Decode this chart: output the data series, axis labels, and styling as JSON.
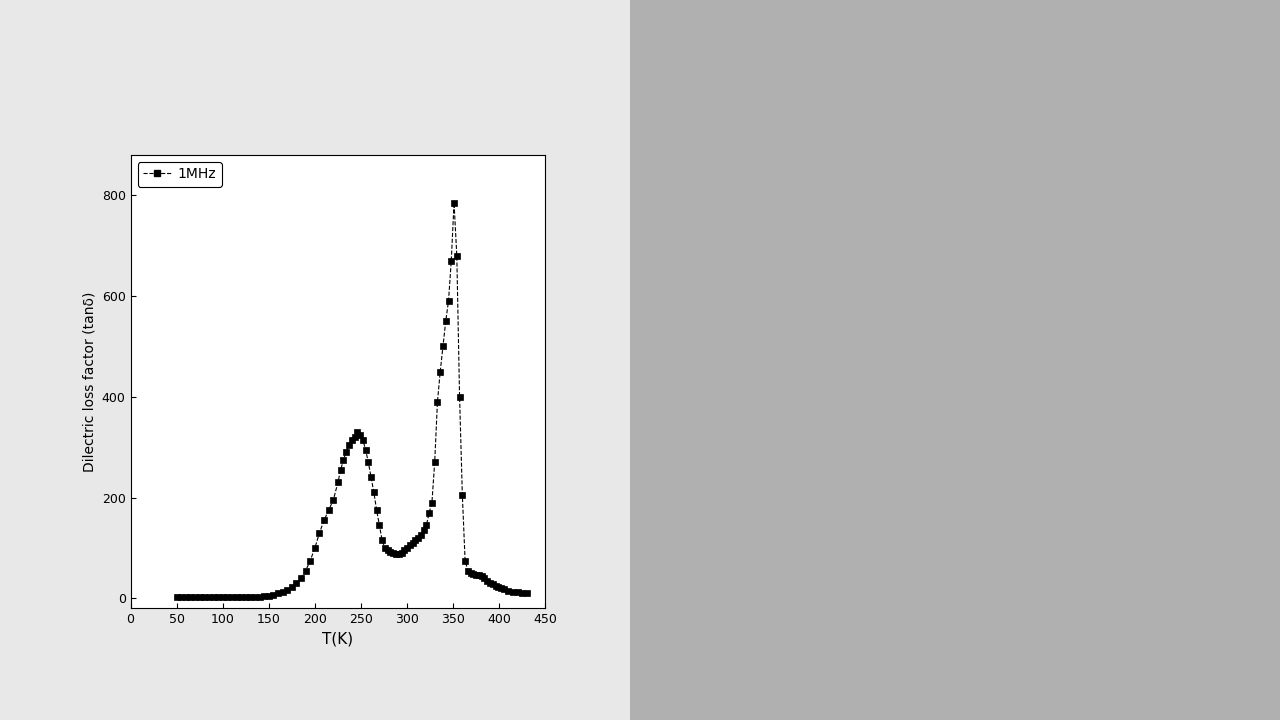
{
  "title": "",
  "xlabel": "T(K)",
  "ylabel": "Dilectric loss factor (tanδ)",
  "xlim": [
    0,
    450
  ],
  "ylim": [
    -20,
    880
  ],
  "yticks": [
    0,
    200,
    400,
    600,
    800
  ],
  "xticks": [
    0,
    50,
    100,
    150,
    200,
    250,
    300,
    350,
    400,
    450
  ],
  "legend_label": "1MHz",
  "line_color": "black",
  "marker": "s",
  "marker_size": 4,
  "marker_color": "black",
  "plot_bg": "#ffffff",
  "fig_bg": "#b0b0b0",
  "white_panel_bg": "#f0f0f0",
  "x_data": [
    50,
    55,
    60,
    65,
    70,
    75,
    80,
    85,
    90,
    95,
    100,
    105,
    110,
    115,
    120,
    125,
    130,
    135,
    140,
    145,
    150,
    155,
    160,
    165,
    170,
    175,
    180,
    185,
    190,
    195,
    200,
    205,
    210,
    215,
    220,
    225,
    228,
    231,
    234,
    237,
    240,
    243,
    246,
    249,
    252,
    255,
    258,
    261,
    264,
    267,
    270,
    273,
    276,
    279,
    282,
    285,
    288,
    291,
    294,
    297,
    300,
    303,
    306,
    309,
    312,
    315,
    318,
    321,
    324,
    327,
    330,
    333,
    336,
    339,
    342,
    345,
    348,
    351,
    354,
    357,
    360,
    363,
    366,
    369,
    372,
    375,
    378,
    381,
    384,
    387,
    390,
    393,
    396,
    399,
    402,
    405,
    410,
    415,
    420,
    425,
    430
  ],
  "y_data": [
    2,
    2,
    2,
    2,
    2,
    2,
    2,
    2,
    2,
    2,
    2,
    2,
    2,
    2,
    2,
    2,
    2,
    2,
    3,
    4,
    5,
    7,
    10,
    13,
    17,
    22,
    30,
    40,
    55,
    75,
    100,
    130,
    155,
    175,
    195,
    230,
    255,
    275,
    290,
    305,
    315,
    320,
    330,
    325,
    315,
    295,
    270,
    240,
    210,
    175,
    145,
    115,
    100,
    95,
    92,
    90,
    88,
    88,
    90,
    95,
    100,
    105,
    110,
    115,
    120,
    125,
    135,
    145,
    170,
    190,
    270,
    390,
    450,
    500,
    550,
    590,
    670,
    785,
    680,
    400,
    205,
    75,
    55,
    50,
    48,
    47,
    46,
    45,
    40,
    35,
    30,
    28,
    25,
    22,
    20,
    18,
    15,
    13,
    12,
    11,
    10
  ]
}
